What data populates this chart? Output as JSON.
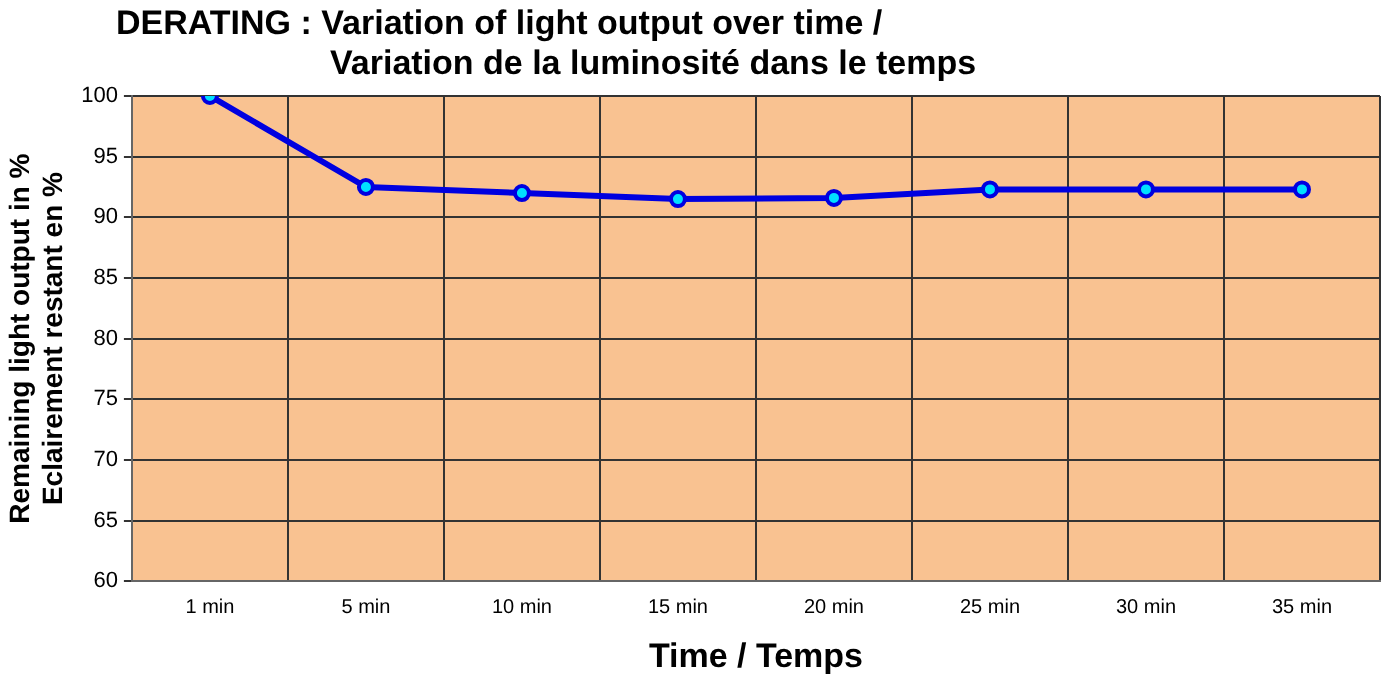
{
  "chart_data": {
    "type": "line",
    "title": "DERATING : Variation of light output over time /\nVariation de la luminosité dans le temps",
    "xlabel": "Time / Temps",
    "ylabel": "Remaining light output in %\nEclairement restant en %",
    "categories": [
      "1 min",
      "5 min",
      "10 min",
      "15 min",
      "20 min",
      "25 min",
      "30 min",
      "35 min"
    ],
    "series": [
      {
        "color": "#0000e0",
        "values": [
          100,
          92.5,
          92,
          91.5,
          91.6,
          92.3,
          92.3,
          92.3
        ]
      }
    ],
    "ylim": [
      60,
      100
    ],
    "yticks": [
      60,
      65,
      70,
      75,
      80,
      85,
      90,
      95,
      100
    ],
    "grid": true,
    "marker": "circle",
    "line_style": "solid",
    "legend": false
  }
}
